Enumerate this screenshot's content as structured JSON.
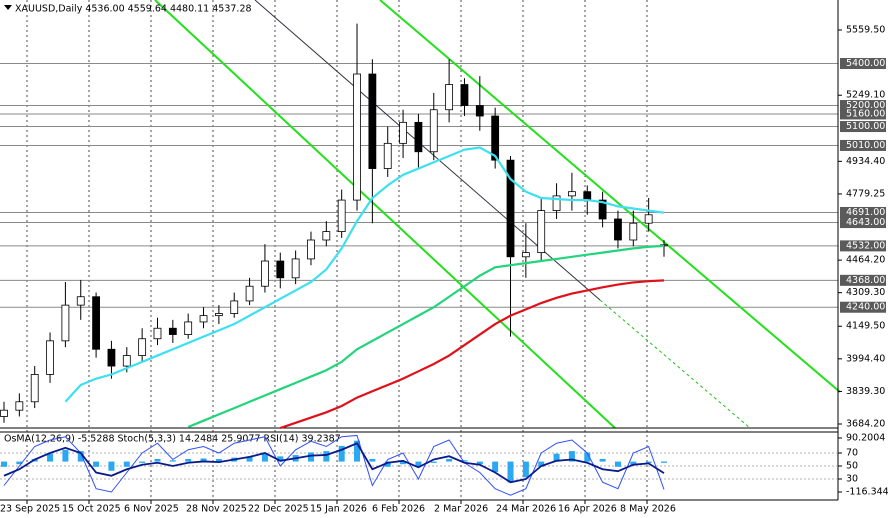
{
  "chart_data": [
    {
      "type": "candlestick",
      "title": "XAUUSD,Daily  4536.00 4559.64 4480.11 4537.28",
      "date_labels": [
        "23 Sep 2025",
        "15 Oct 2025",
        "6 Nov 2025",
        "28 Nov 2025",
        "22 Dec 2025",
        "15 Jan 2026",
        "6 Feb 2026",
        "2 Mar 2026",
        "24 Mar 2026",
        "16 Apr 2026",
        "8 May 2026"
      ],
      "open": [
        3720,
        3750,
        3790,
        3920,
        4080,
        4250,
        4290,
        4040,
        3960,
        4010,
        4090,
        4140,
        4110,
        4170,
        4200,
        4210,
        4270,
        4340,
        4460,
        4380,
        4470,
        4560,
        4600,
        4750,
        5350,
        4900,
        5020,
        5120,
        4980,
        5180,
        5300,
        5200,
        5150,
        4940,
        4480,
        4500,
        4700,
        4770,
        4790,
        4750,
        4660,
        4560,
        4640,
        4536
      ],
      "high": [
        3790,
        3830,
        3960,
        4120,
        4360,
        4370,
        4310,
        4080,
        4050,
        4140,
        4190,
        4180,
        4210,
        4240,
        4250,
        4310,
        4380,
        4540,
        4500,
        4510,
        4600,
        4650,
        4800,
        5590,
        5420,
        5100,
        5180,
        5160,
        5260,
        5420,
        5330,
        5340,
        5190,
        4960,
        4640,
        4760,
        4830,
        4880,
        4820,
        4790,
        4700,
        4700,
        4760,
        4559.64
      ],
      "low": [
        3690,
        3720,
        3760,
        3880,
        4050,
        4180,
        4000,
        3900,
        3930,
        3980,
        4060,
        4070,
        4090,
        4140,
        4160,
        4190,
        4250,
        4310,
        4330,
        4350,
        4440,
        4530,
        4570,
        4700,
        4640,
        4860,
        4950,
        4900,
        4940,
        5120,
        5150,
        5080,
        4900,
        4100,
        4380,
        4460,
        4660,
        4700,
        4680,
        4620,
        4520,
        4530,
        4600,
        4480.11
      ],
      "close": [
        3750,
        3790,
        3920,
        4080,
        4250,
        4290,
        4040,
        3960,
        4010,
        4090,
        4140,
        4110,
        4170,
        4200,
        4210,
        4270,
        4340,
        4460,
        4380,
        4470,
        4560,
        4600,
        4750,
        5350,
        4900,
        5020,
        5120,
        4980,
        5180,
        5300,
        5200,
        5150,
        4940,
        4480,
        4500,
        4700,
        4770,
        4790,
        4750,
        4660,
        4560,
        4640,
        4680,
        4537.28
      ],
      "series": [
        {
          "color": "#3de0f0",
          "values": [
            null,
            null,
            null,
            null,
            3790,
            3870,
            3900,
            3920,
            3950,
            3980,
            4010,
            4040,
            4070,
            4100,
            4130,
            4160,
            4200,
            4240,
            4280,
            4320,
            4360,
            4420,
            4520,
            4650,
            4760,
            4820,
            4870,
            4900,
            4930,
            4960,
            4990,
            5000,
            4960,
            4850,
            4790,
            4760,
            4755,
            4750,
            4750,
            4740,
            4720,
            4710,
            4700,
            4690
          ]
        },
        {
          "color": "#22d47a",
          "values": [
            null,
            null,
            null,
            null,
            null,
            null,
            null,
            null,
            null,
            null,
            null,
            null,
            3670,
            3700,
            3730,
            3760,
            3790,
            3820,
            3850,
            3880,
            3910,
            3940,
            3980,
            4040,
            4080,
            4120,
            4160,
            4200,
            4240,
            4290,
            4340,
            4390,
            4430,
            4440,
            4450,
            4460,
            4470,
            4480,
            4490,
            4500,
            4510,
            4520,
            4528,
            4532
          ]
        },
        {
          "color": "#e0101a",
          "values": [
            null,
            null,
            null,
            null,
            null,
            null,
            null,
            null,
            null,
            null,
            null,
            null,
            null,
            null,
            null,
            null,
            null,
            null,
            3665,
            3690,
            3715,
            3740,
            3770,
            3810,
            3840,
            3870,
            3900,
            3935,
            3970,
            4010,
            4060,
            4110,
            4160,
            4200,
            4230,
            4260,
            4285,
            4305,
            4320,
            4335,
            4348,
            4358,
            4364,
            4368
          ]
        }
      ],
      "ylim": [
        3665.2,
        5702.3
      ],
      "yticks": [
        {
          "value": 5559.5,
          "label": "5559.50"
        },
        {
          "value": 5249.1,
          "label": "5249.10"
        },
        {
          "value": 4934.4,
          "label": "4934.40"
        },
        {
          "value": 4779.25,
          "label": "4779.25"
        },
        {
          "value": 4464.2,
          "label": "4464.20"
        },
        {
          "value": 4309.3,
          "label": "4309.30"
        },
        {
          "value": 4149.5,
          "label": "4149.50"
        },
        {
          "value": 3994.4,
          "label": "3994.40"
        },
        {
          "value": 3839.3,
          "label": "3839.30"
        },
        {
          "value": 3684.2,
          "label": "3684.20"
        }
      ],
      "levels": [
        {
          "value": 5400,
          "label": "5400.00"
        },
        {
          "value": 5200,
          "label": "5200.00"
        },
        {
          "value": 5160,
          "label": "5160.00"
        },
        {
          "value": 5100,
          "label": "5100.00"
        },
        {
          "value": 5010,
          "label": "5010.00"
        },
        {
          "value": 4691,
          "label": "4691.00"
        },
        {
          "value": 4643,
          "label": "4643.00"
        },
        {
          "value": 4532,
          "label": "4532.00"
        },
        {
          "value": 4368,
          "label": "4368.00"
        },
        {
          "value": 4240,
          "label": "4240.00"
        }
      ],
      "grid": true
    },
    {
      "type": "oscillator",
      "title": "OsMA(12,26,9) -5.5288  Stoch(5,3,3) 14.2484 25.9077  RSI(14) 39.2387",
      "series": [
        {
          "color": "#2aa8f0",
          "axis": "y2",
          "values": [
            -20,
            -10,
            10,
            30,
            45,
            40,
            -20,
            -35,
            -20,
            -5,
            10,
            5,
            10,
            12,
            10,
            15,
            20,
            30,
            20,
            25,
            35,
            40,
            60,
            80,
            10,
            -20,
            -10,
            -20,
            -5,
            10,
            5,
            -10,
            -40,
            -80,
            -60,
            -20,
            30,
            40,
            35,
            10,
            -20,
            -15,
            -5,
            -5
          ]
        },
        {
          "color": "#3050ff",
          "values": [
            20,
            50,
            80,
            90,
            95,
            70,
            15,
            10,
            40,
            70,
            85,
            60,
            75,
            80,
            70,
            85,
            90,
            95,
            50,
            75,
            88,
            80,
            95,
            97,
            20,
            60,
            70,
            30,
            80,
            90,
            55,
            40,
            15,
            5,
            15,
            70,
            85,
            90,
            70,
            25,
            15,
            70,
            80,
            14
          ]
        },
        {
          "color": "#0a1a8c",
          "values": [
            35,
            45,
            60,
            70,
            78,
            70,
            40,
            35,
            45,
            52,
            55,
            50,
            55,
            57,
            56,
            60,
            64,
            70,
            58,
            62,
            66,
            67,
            75,
            85,
            45,
            55,
            58,
            48,
            60,
            65,
            55,
            52,
            40,
            25,
            30,
            50,
            58,
            60,
            55,
            45,
            42,
            52,
            54,
            39
          ]
        }
      ],
      "ylim": [
        0,
        100
      ],
      "yticks": [
        70,
        50,
        30
      ],
      "y2lim": [
        -116.3446,
        90.2004
      ],
      "y2ticks": [
        90.2004,
        -116.3446
      ]
    }
  ]
}
